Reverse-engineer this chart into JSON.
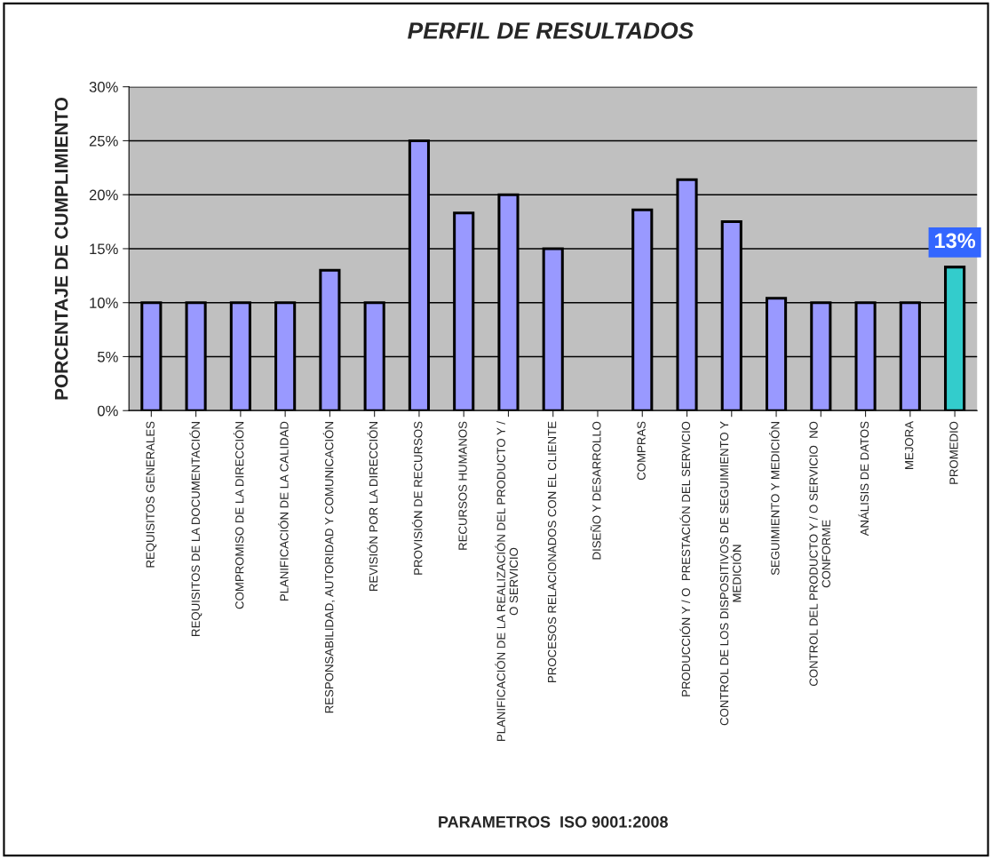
{
  "chart_data": {
    "type": "bar",
    "title": "PERFIL DE RESULTADOS",
    "xlabel": "PARAMETROS  ISO 9001:2008",
    "ylabel": "PORCENTAJE DE CUMPLIMIENTO",
    "categories": [
      "REQUISITOS GENERALES",
      "REQUISITOS DE LA DOCUMENTACIÓN",
      "COMPROMISO DE LA DIRECCIÓN",
      "PLANIFICACIÓN DE LA CALIDAD",
      "RESPONSABILIDAD, AUTORIDAD Y COMUNICACIÓN",
      "REVISIÓN POR LA DIRECCIÓN",
      "PROVISIÓN DE RECURSOS",
      "RECURSOS HUMANOS",
      "PLANIFICACIÓN DE LA REALIZACIÓN DEL PRODUCTO Y /\nO SERVICIO",
      "PROCESOS RELACIONADOS CON EL CLIENTE",
      "DISEÑO Y DESARROLLO",
      "COMPRAS",
      "PRODUCCIÓN Y / O  PRESTACIÓN DEL SERVICIO",
      "CONTROL DE LOS DISPOSITIVOS DE SEGUIMIENTO Y\nMEDICIÓN",
      "SEGUIMIENTO Y MEDICIÓN",
      "CONTROL DEL PRODUCTO Y / O SERVICIO  NO\nCONFORME",
      "ANÁLISIS DE DATOS",
      "MEJORA",
      "PROMEDIO"
    ],
    "values": [
      10,
      10,
      10,
      10,
      13.0,
      10,
      25,
      18.3,
      20,
      15,
      0,
      18.6,
      21.4,
      17.5,
      10.4,
      10,
      10,
      10,
      13.3
    ],
    "colors": [
      "#9999ff",
      "#9999ff",
      "#9999ff",
      "#9999ff",
      "#9999ff",
      "#9999ff",
      "#9999ff",
      "#9999ff",
      "#9999ff",
      "#9999ff",
      "#9999ff",
      "#9999ff",
      "#9999ff",
      "#9999ff",
      "#9999ff",
      "#9999ff",
      "#9999ff",
      "#9999ff",
      "#33cccc"
    ],
    "value_labels": [
      null,
      null,
      null,
      null,
      null,
      null,
      null,
      null,
      null,
      null,
      null,
      null,
      null,
      null,
      null,
      null,
      null,
      null,
      "13%"
    ],
    "ylim": [
      0,
      30
    ],
    "yticks": [
      {
        "value": 0,
        "label": "0%"
      },
      {
        "value": 5,
        "label": "5%"
      },
      {
        "value": 10,
        "label": "10%"
      },
      {
        "value": 15,
        "label": "15%"
      },
      {
        "value": 20,
        "label": "20%"
      },
      {
        "value": 25,
        "label": "25%"
      },
      {
        "value": 30,
        "label": "30%"
      }
    ],
    "grid": "y",
    "legend": false
  }
}
